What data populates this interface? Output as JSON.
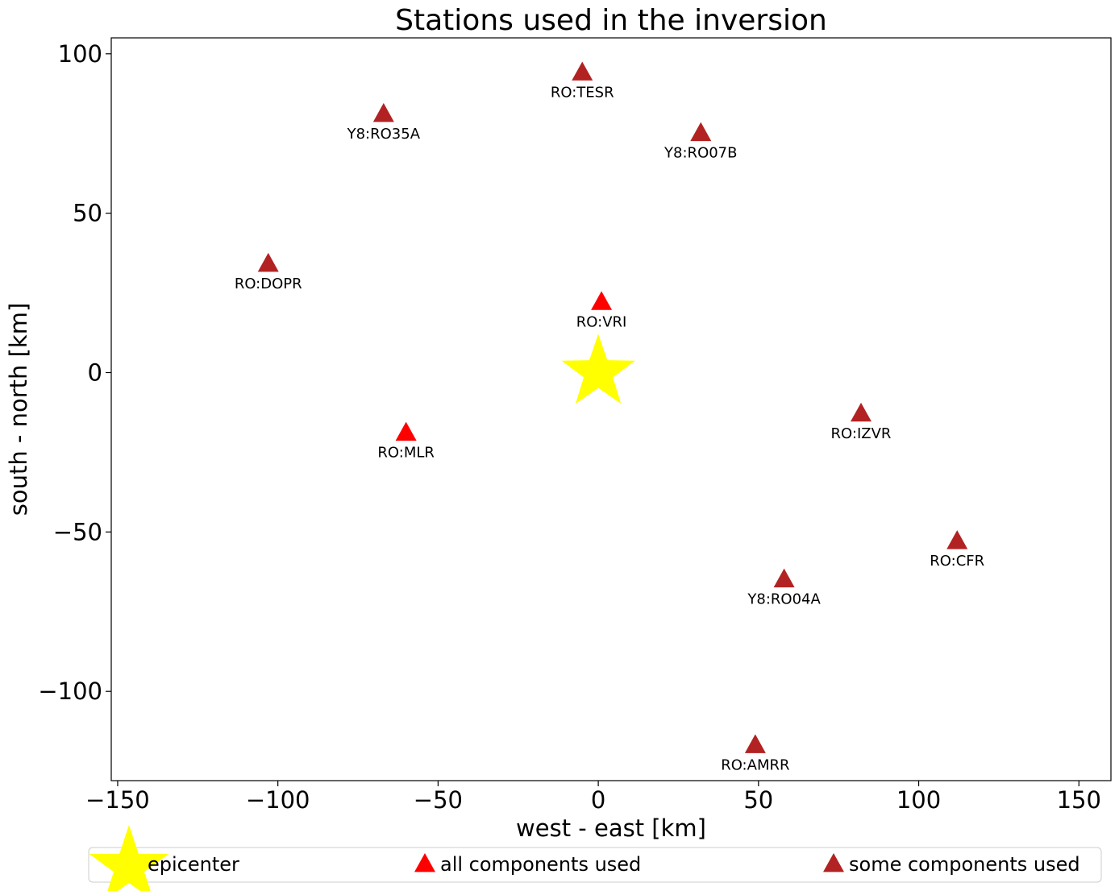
{
  "chart_data": {
    "type": "scatter",
    "title": "Stations used in the inversion",
    "xlabel": "west - east [km]",
    "ylabel": "south - north [km]",
    "xlim": [
      -152,
      160
    ],
    "ylim": [
      -128,
      105
    ],
    "xticks": [
      -150,
      -100,
      -50,
      0,
      50,
      100,
      150
    ],
    "yticks": [
      -100,
      -50,
      0,
      50,
      100
    ],
    "grid": false,
    "legend_placement": "bottom",
    "epicenter": {
      "x": 0,
      "y": 0,
      "color": "#ffff00",
      "marker": "star"
    },
    "stations": [
      {
        "name": "RO:TESR",
        "x": -5,
        "y": 94,
        "category": "some"
      },
      {
        "name": "Y8:RO35A",
        "x": -67,
        "y": 81,
        "category": "some"
      },
      {
        "name": "Y8:RO07B",
        "x": 32,
        "y": 75,
        "category": "some"
      },
      {
        "name": "RO:DOPR",
        "x": -103,
        "y": 34,
        "category": "some"
      },
      {
        "name": "RO:VRI",
        "x": 1,
        "y": 22,
        "category": "all"
      },
      {
        "name": "RO:IZVR",
        "x": 82,
        "y": -13,
        "category": "some"
      },
      {
        "name": "RO:MLR",
        "x": -60,
        "y": -19,
        "category": "all"
      },
      {
        "name": "RO:CFR",
        "x": 112,
        "y": -53,
        "category": "some"
      },
      {
        "name": "Y8:RO04A",
        "x": 58,
        "y": -65,
        "category": "some"
      },
      {
        "name": "RO:AMRR",
        "x": 49,
        "y": -117,
        "category": "some"
      }
    ],
    "categories": {
      "all": {
        "color": "#ff0000"
      },
      "some": {
        "color": "#b22222"
      }
    },
    "legend": [
      {
        "label": "epicenter",
        "marker": "star",
        "color": "#ffff00"
      },
      {
        "label": "all components used",
        "marker": "triangle",
        "color": "#ff0000"
      },
      {
        "label": "some components used",
        "marker": "triangle",
        "color": "#b22222"
      }
    ]
  }
}
